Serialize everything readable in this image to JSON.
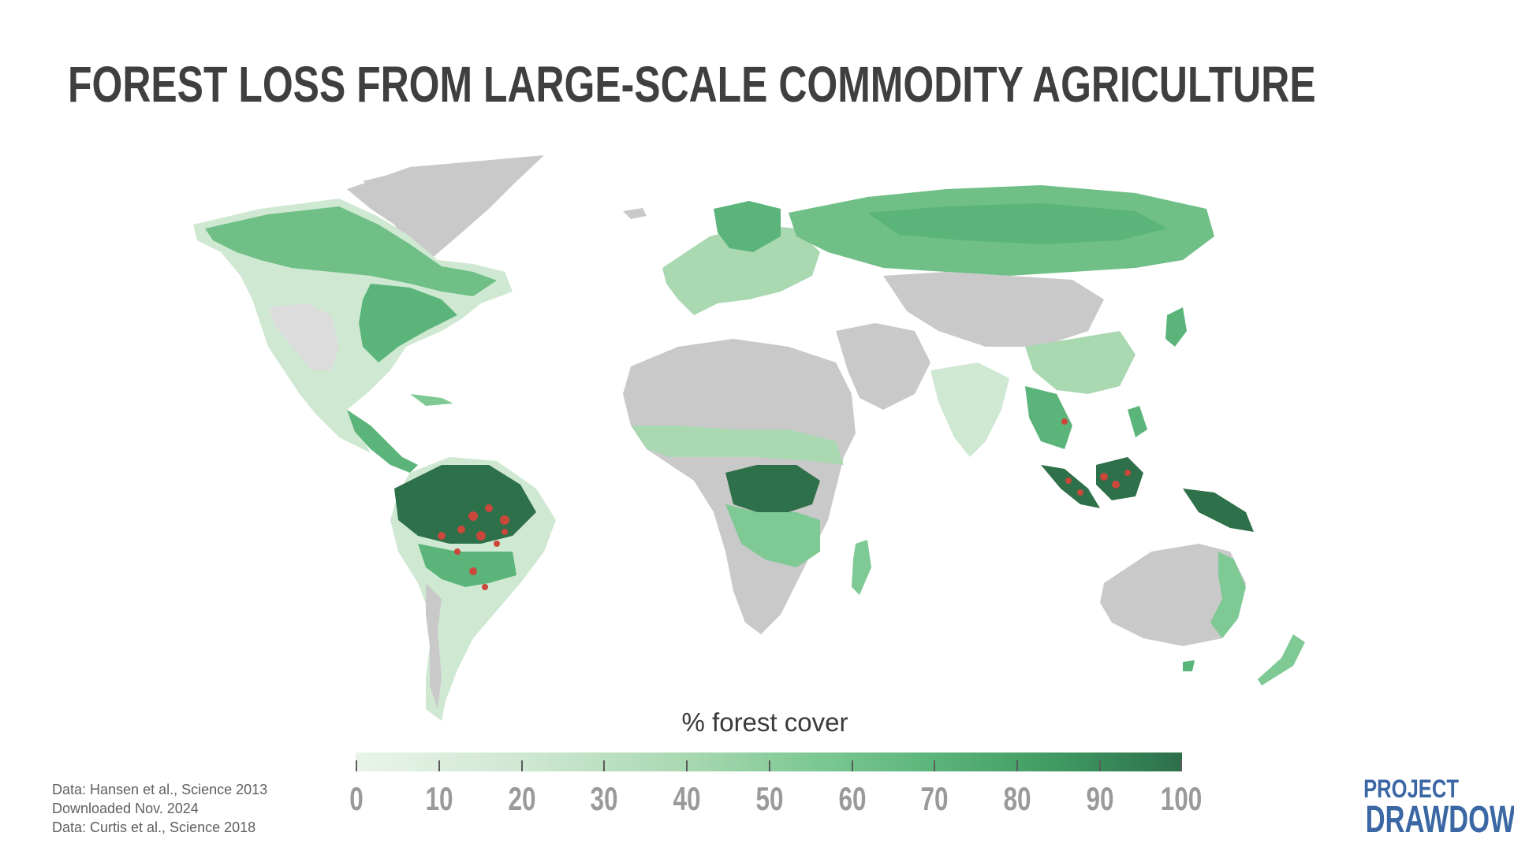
{
  "title": "FOREST LOSS FROM LARGE-SCALE COMMODITY AGRICULTURE",
  "legend": {
    "title": "% forest cover",
    "ticks": [
      "0",
      "10",
      "20",
      "30",
      "40",
      "50",
      "60",
      "70",
      "80",
      "90",
      "100"
    ],
    "gradient_colors": [
      "#e9f4ea",
      "#cfe8d2",
      "#a9d8b1",
      "#7ec994",
      "#5bb57a",
      "#3f9a62",
      "#2d6f4a"
    ]
  },
  "credits": {
    "line1": "Data: Hansen et al., Science 2013",
    "line2": "Downloaded Nov. 2024",
    "line3": "Data: Curtis et al., Science 2018"
  },
  "logo": {
    "line1": "PROJECT",
    "line2": "DRAWDOWN",
    "color": "#3b67a5"
  },
  "map_colors": {
    "no_forest": "#c9c9c9",
    "light_forest": "#d4ecd8",
    "medium_forest": "#6fbf86",
    "dense_forest": "#2e7049",
    "commodity_loss": "#c9473b"
  }
}
